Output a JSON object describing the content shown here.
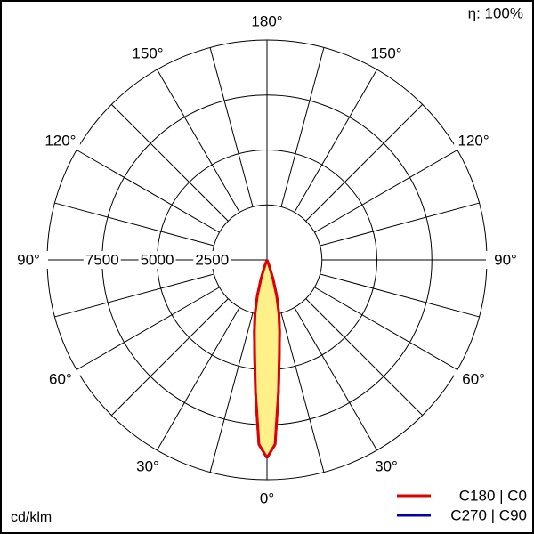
{
  "chart_data": {
    "type": "polar",
    "efficiency_label": "η: 100%",
    "unit_label": "cd/klm",
    "rlim": [
      0,
      10000
    ],
    "rticks": [
      2500,
      5000,
      7500
    ],
    "angle_ticks": [
      {
        "value": 0,
        "label": "0°"
      },
      {
        "value": 30,
        "label": "30°"
      },
      {
        "value": 60,
        "label": "60°"
      },
      {
        "value": 90,
        "label": "90°"
      },
      {
        "value": 120,
        "label": "120°"
      },
      {
        "value": 150,
        "label": "150°"
      },
      {
        "value": 180,
        "label": "180°"
      }
    ],
    "x": [
      0,
      2.5,
      5,
      7.5,
      10,
      12.5,
      15,
      17.5,
      20,
      22.5
    ],
    "fill": "#fff08a",
    "series": [
      {
        "name": "C270 | C90",
        "color": "#0000b0",
        "values": [
          9000,
          8400,
          6000,
          4300,
          3300,
          2500,
          1700,
          900,
          300,
          0
        ]
      },
      {
        "name": "C180 | C0",
        "color": "#e00000",
        "values": [
          9000,
          8400,
          6000,
          4300,
          3300,
          2500,
          1700,
          900,
          300,
          0
        ]
      }
    ]
  }
}
